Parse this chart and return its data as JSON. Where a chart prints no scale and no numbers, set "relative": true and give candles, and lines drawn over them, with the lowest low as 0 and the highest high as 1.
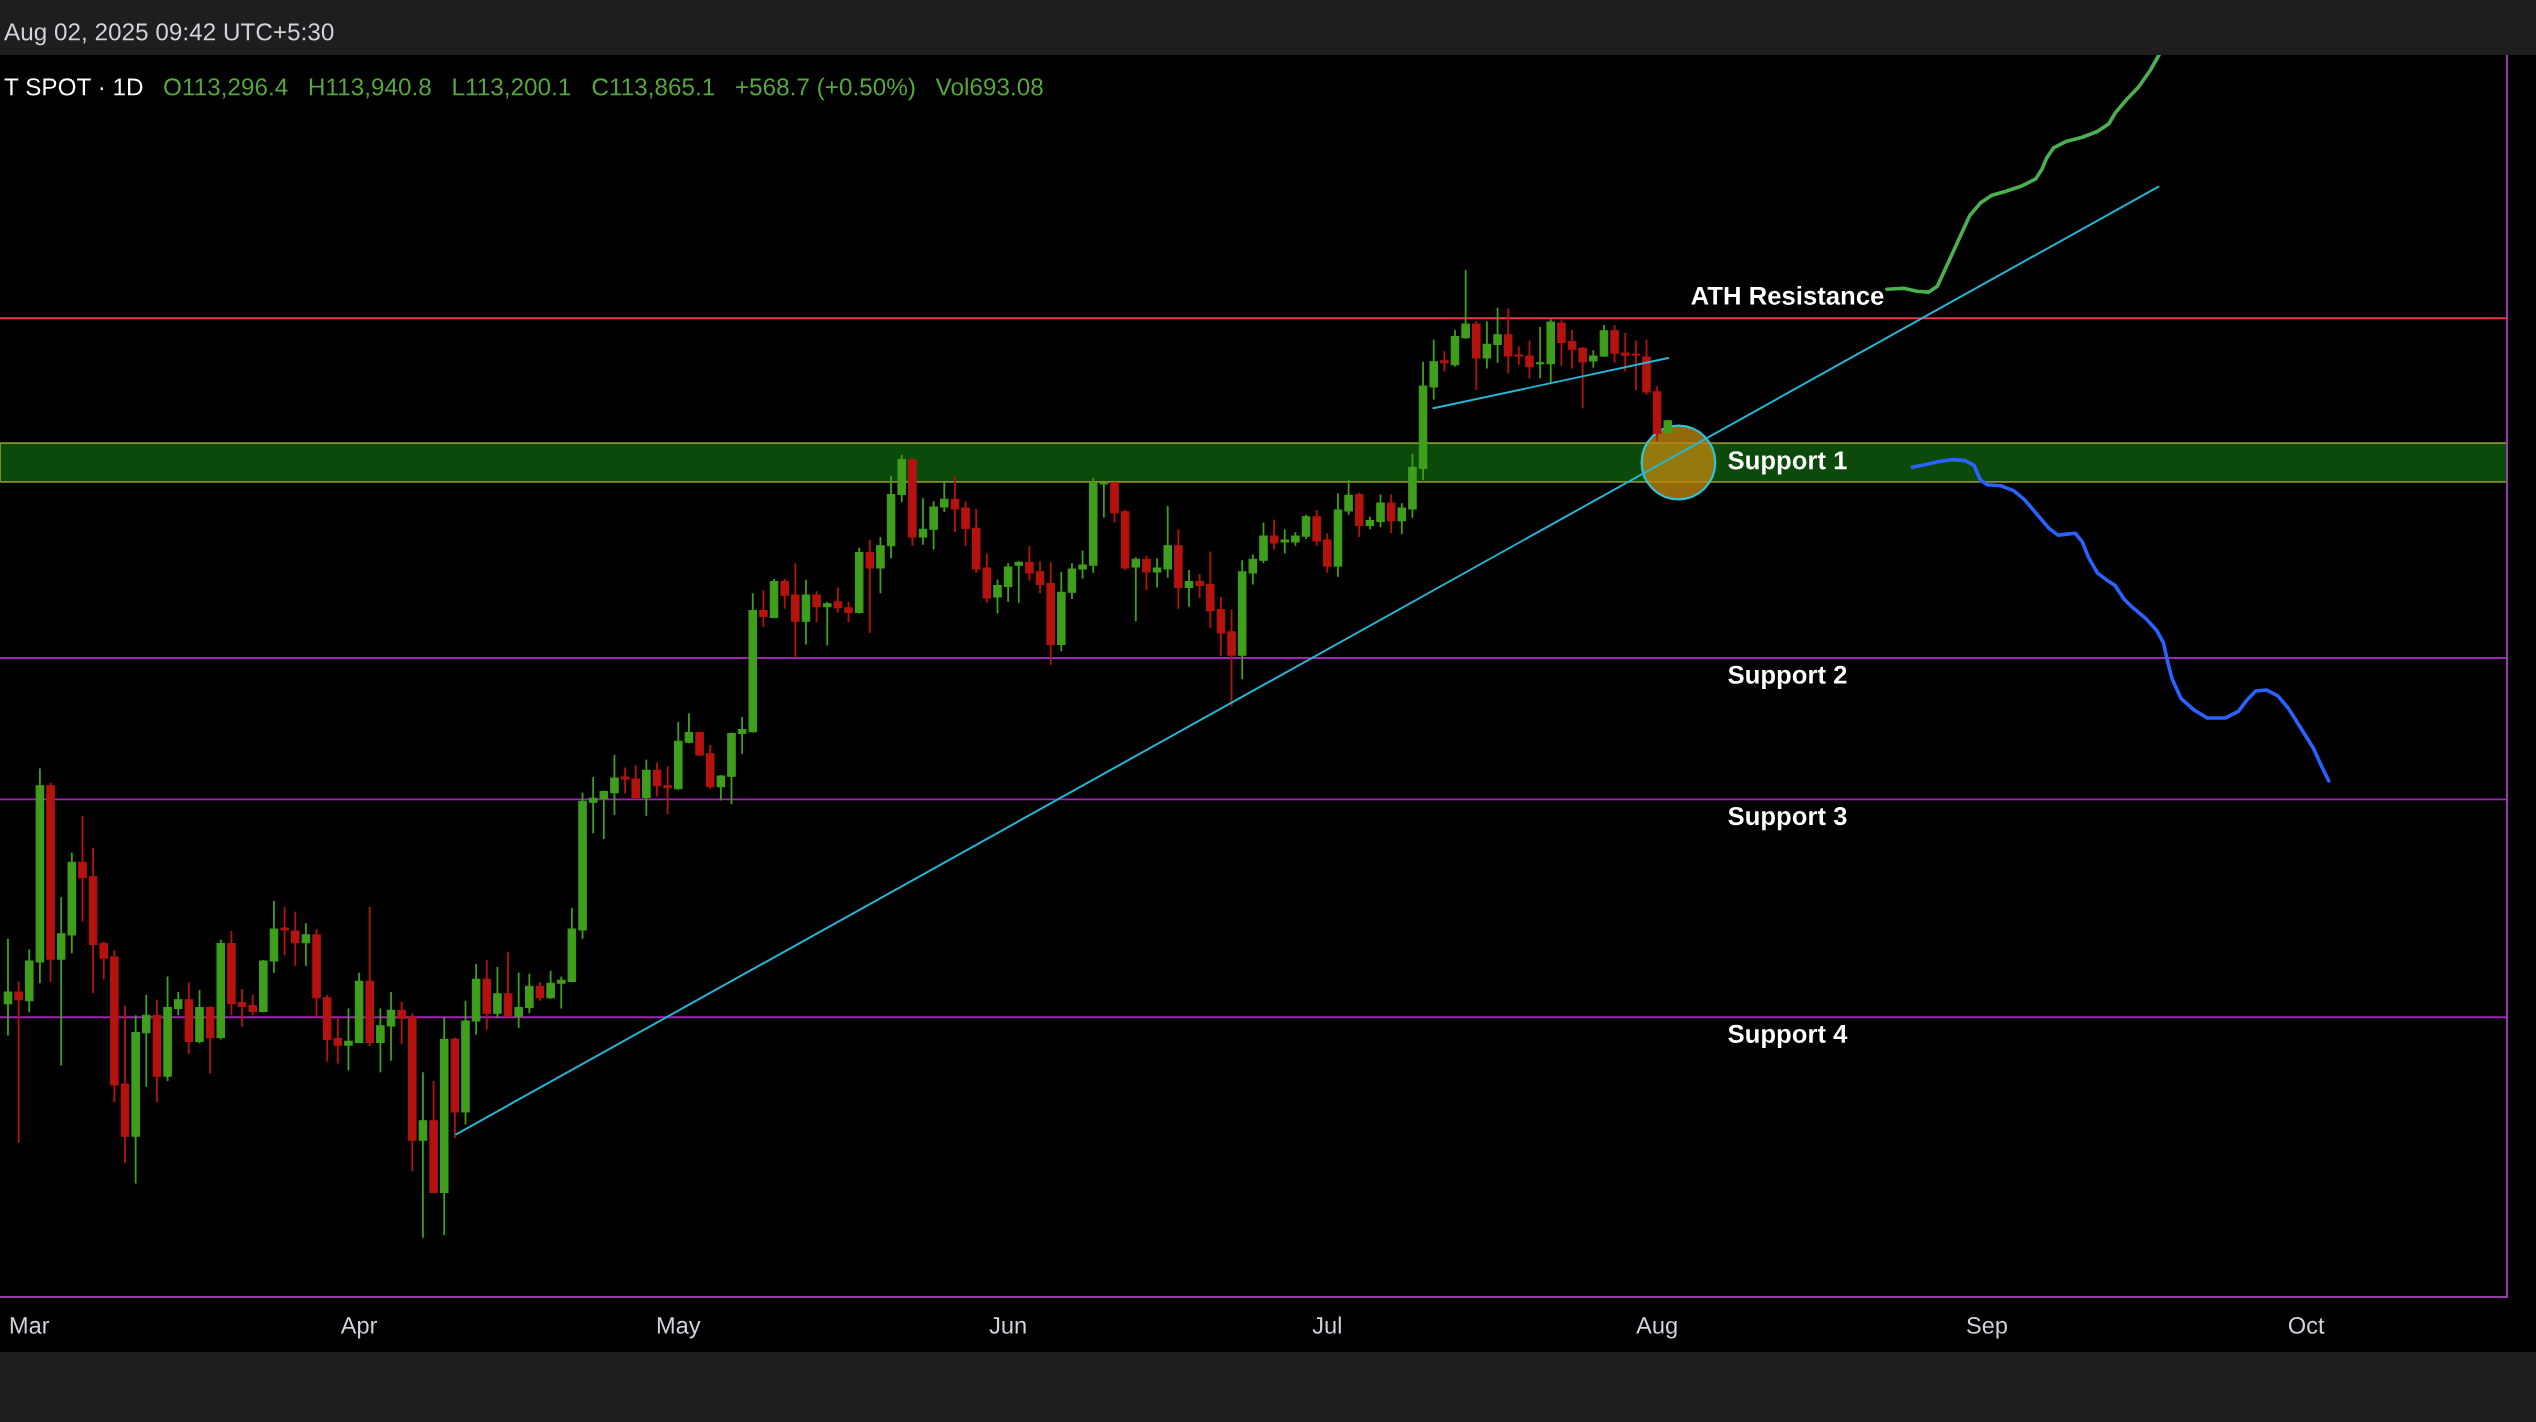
{
  "chart_data": {
    "type": "candlestick",
    "relative": true,
    "annotations": [
      "Aug 02, 2025 09:42 UTC+5:30",
      "T SPOT · 1D",
      "O113,296.4",
      "H113,940.8",
      "L113,200.1",
      "C113,865.1",
      "+568.7 (+0.50%)",
      "Vol693.08"
    ],
    "xlim": [
      "2025-02-26T06:00",
      "2025-10-19T21:00"
    ],
    "xticks": [
      {
        "value": "2025-03-01",
        "label": "Mar"
      },
      {
        "value": "2025-04-01",
        "label": "Apr"
      },
      {
        "value": "2025-05-01",
        "label": "May"
      },
      {
        "value": "2025-06-01",
        "label": "Jun"
      },
      {
        "value": "2025-07-01",
        "label": "Jul"
      },
      {
        "value": "2025-08-01",
        "label": "Aug"
      },
      {
        "value": "2025-09-01",
        "label": "Sep"
      },
      {
        "value": "2025-10-01",
        "label": "Oct"
      }
    ],
    "x": [
      "2025-02-27",
      "2025-02-28",
      "2025-03-01",
      "2025-03-02",
      "2025-03-03",
      "2025-03-04",
      "2025-03-05",
      "2025-03-06",
      "2025-03-07",
      "2025-03-08",
      "2025-03-09",
      "2025-03-10",
      "2025-03-11",
      "2025-03-12",
      "2025-03-13",
      "2025-03-14",
      "2025-03-15",
      "2025-03-16",
      "2025-03-17",
      "2025-03-18",
      "2025-03-19",
      "2025-03-20",
      "2025-03-21",
      "2025-03-22",
      "2025-03-23",
      "2025-03-24",
      "2025-03-25",
      "2025-03-26",
      "2025-03-27",
      "2025-03-28",
      "2025-03-29",
      "2025-03-30",
      "2025-03-31",
      "2025-04-01",
      "2025-04-02",
      "2025-04-03",
      "2025-04-04",
      "2025-04-05",
      "2025-04-06",
      "2025-04-07",
      "2025-04-08",
      "2025-04-09",
      "2025-04-10",
      "2025-04-11",
      "2025-04-12",
      "2025-04-13",
      "2025-04-14",
      "2025-04-15",
      "2025-04-16",
      "2025-04-17",
      "2025-04-18",
      "2025-04-19",
      "2025-04-20",
      "2025-04-21",
      "2025-04-22",
      "2025-04-23",
      "2025-04-24",
      "2025-04-25",
      "2025-04-26",
      "2025-04-27",
      "2025-04-28",
      "2025-04-29",
      "2025-04-30",
      "2025-05-01",
      "2025-05-02",
      "2025-05-03",
      "2025-05-04",
      "2025-05-05",
      "2025-05-06",
      "2025-05-07",
      "2025-05-08",
      "2025-05-09",
      "2025-05-10",
      "2025-05-11",
      "2025-05-12",
      "2025-05-13",
      "2025-05-14",
      "2025-05-15",
      "2025-05-16",
      "2025-05-17",
      "2025-05-18",
      "2025-05-19",
      "2025-05-20",
      "2025-05-21",
      "2025-05-22",
      "2025-05-23",
      "2025-05-24",
      "2025-05-25",
      "2025-05-26",
      "2025-05-27",
      "2025-05-28",
      "2025-05-29",
      "2025-05-30",
      "2025-05-31",
      "2025-06-01",
      "2025-06-02",
      "2025-06-03",
      "2025-06-04",
      "2025-06-05",
      "2025-06-06",
      "2025-06-07",
      "2025-06-08",
      "2025-06-09",
      "2025-06-10",
      "2025-06-11",
      "2025-06-12",
      "2025-06-13",
      "2025-06-14",
      "2025-06-15",
      "2025-06-16",
      "2025-06-17",
      "2025-06-18",
      "2025-06-19",
      "2025-06-20",
      "2025-06-21",
      "2025-06-22",
      "2025-06-23",
      "2025-06-24",
      "2025-06-25",
      "2025-06-26",
      "2025-06-27",
      "2025-06-28",
      "2025-06-29",
      "2025-06-30",
      "2025-07-01",
      "2025-07-02",
      "2025-07-03",
      "2025-07-04",
      "2025-07-05",
      "2025-07-06",
      "2025-07-07",
      "2025-07-08",
      "2025-07-09",
      "2025-07-10",
      "2025-07-11",
      "2025-07-12",
      "2025-07-13",
      "2025-07-14",
      "2025-07-15",
      "2025-07-16",
      "2025-07-17",
      "2025-07-18",
      "2025-07-19",
      "2025-07-20",
      "2025-07-21",
      "2025-07-22",
      "2025-07-23",
      "2025-07-24",
      "2025-07-25",
      "2025-07-26",
      "2025-07-27",
      "2025-07-28",
      "2025-07-29",
      "2025-07-30",
      "2025-07-31",
      "2025-08-01",
      "2025-08-02"
    ],
    "ohlc": [
      [
        0.242,
        0.309,
        0.209,
        0.254
      ],
      [
        0.254,
        0.265,
        0.098,
        0.246
      ],
      [
        0.245,
        0.298,
        0.233,
        0.286
      ],
      [
        0.285,
        0.485,
        0.263,
        0.467
      ],
      [
        0.467,
        0.47,
        0.264,
        0.288
      ],
      [
        0.288,
        0.352,
        0.178,
        0.314
      ],
      [
        0.313,
        0.398,
        0.294,
        0.388
      ],
      [
        0.388,
        0.436,
        0.327,
        0.372
      ],
      [
        0.373,
        0.403,
        0.253,
        0.303
      ],
      [
        0.304,
        0.306,
        0.267,
        0.289
      ],
      [
        0.29,
        0.297,
        0.14,
        0.158
      ],
      [
        0.159,
        0.24,
        0.077,
        0.105
      ],
      [
        0.105,
        0.23,
        0.056,
        0.212
      ],
      [
        0.212,
        0.251,
        0.156,
        0.23
      ],
      [
        0.23,
        0.246,
        0.14,
        0.167
      ],
      [
        0.167,
        0.27,
        0.162,
        0.238
      ],
      [
        0.237,
        0.254,
        0.23,
        0.246
      ],
      [
        0.246,
        0.264,
        0.19,
        0.203
      ],
      [
        0.203,
        0.256,
        0.201,
        0.238
      ],
      [
        0.238,
        0.239,
        0.17,
        0.207
      ],
      [
        0.207,
        0.308,
        0.205,
        0.304
      ],
      [
        0.304,
        0.317,
        0.23,
        0.242
      ],
      [
        0.243,
        0.257,
        0.218,
        0.239
      ],
      [
        0.24,
        0.251,
        0.23,
        0.234
      ],
      [
        0.234,
        0.287,
        0.233,
        0.286
      ],
      [
        0.286,
        0.348,
        0.274,
        0.319
      ],
      [
        0.32,
        0.342,
        0.292,
        0.318
      ],
      [
        0.317,
        0.337,
        0.281,
        0.305
      ],
      [
        0.305,
        0.325,
        0.281,
        0.313
      ],
      [
        0.313,
        0.319,
        0.228,
        0.248
      ],
      [
        0.248,
        0.251,
        0.182,
        0.205
      ],
      [
        0.206,
        0.228,
        0.18,
        0.199
      ],
      [
        0.199,
        0.237,
        0.173,
        0.203
      ],
      [
        0.202,
        0.274,
        0.201,
        0.265
      ],
      [
        0.265,
        0.342,
        0.198,
        0.202
      ],
      [
        0.202,
        0.237,
        0.171,
        0.219
      ],
      [
        0.219,
        0.254,
        0.183,
        0.235
      ],
      [
        0.235,
        0.244,
        0.2,
        0.227
      ],
      [
        0.228,
        0.232,
        0.069,
        0.101
      ],
      [
        0.101,
        0.171,
        0,
        0.121
      ],
      [
        0.121,
        0.162,
        0.046,
        0.047
      ],
      [
        0.047,
        0.228,
        0.003,
        0.205
      ],
      [
        0.205,
        0.207,
        0.103,
        0.13
      ],
      [
        0.13,
        0.245,
        0.117,
        0.224
      ],
      [
        0.224,
        0.283,
        0.21,
        0.267
      ],
      [
        0.267,
        0.287,
        0.215,
        0.232
      ],
      [
        0.232,
        0.28,
        0.227,
        0.252
      ],
      [
        0.252,
        0.295,
        0.228,
        0.229
      ],
      [
        0.229,
        0.274,
        0.217,
        0.238
      ],
      [
        0.238,
        0.273,
        0.232,
        0.26
      ],
      [
        0.26,
        0.264,
        0.245,
        0.248
      ],
      [
        0.248,
        0.276,
        0.247,
        0.263
      ],
      [
        0.263,
        0.27,
        0.237,
        0.266
      ],
      [
        0.265,
        0.341,
        0.264,
        0.319
      ],
      [
        0.318,
        0.46,
        0.309,
        0.451
      ],
      [
        0.45,
        0.476,
        0.418,
        0.454
      ],
      [
        0.454,
        0.462,
        0.412,
        0.461
      ],
      [
        0.46,
        0.499,
        0.437,
        0.475
      ],
      [
        0.476,
        0.486,
        0.459,
        0.474
      ],
      [
        0.474,
        0.488,
        0.454,
        0.455
      ],
      [
        0.455,
        0.494,
        0.436,
        0.483
      ],
      [
        0.483,
        0.491,
        0.456,
        0.467
      ],
      [
        0.467,
        0.487,
        0.438,
        0.465
      ],
      [
        0.464,
        0.533,
        0.463,
        0.513
      ],
      [
        0.512,
        0.542,
        0.511,
        0.522
      ],
      [
        0.522,
        0.523,
        0.498,
        0.499
      ],
      [
        0.5,
        0.509,
        0.464,
        0.466
      ],
      [
        0.466,
        0.478,
        0.452,
        0.477
      ],
      [
        0.477,
        0.522,
        0.448,
        0.521
      ],
      [
        0.521,
        0.538,
        0.5,
        0.525
      ],
      [
        0.523,
        0.666,
        0.522,
        0.648
      ],
      [
        0.648,
        0.669,
        0.631,
        0.642
      ],
      [
        0.641,
        0.681,
        0.64,
        0.678
      ],
      [
        0.678,
        0.681,
        0.65,
        0.664
      ],
      [
        0.664,
        0.697,
        0.599,
        0.637
      ],
      [
        0.637,
        0.68,
        0.613,
        0.664
      ],
      [
        0.664,
        0.668,
        0.636,
        0.652
      ],
      [
        0.652,
        0.657,
        0.612,
        0.655
      ],
      [
        0.657,
        0.672,
        0.646,
        0.651
      ],
      [
        0.651,
        0.657,
        0.636,
        0.646
      ],
      [
        0.646,
        0.713,
        0.645,
        0.708
      ],
      [
        0.708,
        0.721,
        0.625,
        0.692
      ],
      [
        0.692,
        0.724,
        0.666,
        0.715
      ],
      [
        0.715,
        0.787,
        0.702,
        0.768
      ],
      [
        0.768,
        0.809,
        0.76,
        0.804
      ],
      [
        0.804,
        0.805,
        0.715,
        0.724
      ],
      [
        0.724,
        0.764,
        0.716,
        0.732
      ],
      [
        0.732,
        0.761,
        0.711,
        0.755
      ],
      [
        0.755,
        0.781,
        0.75,
        0.763
      ],
      [
        0.763,
        0.787,
        0.729,
        0.753
      ],
      [
        0.754,
        0.761,
        0.715,
        0.733
      ],
      [
        0.733,
        0.753,
        0.687,
        0.691
      ],
      [
        0.692,
        0.707,
        0.656,
        0.661
      ],
      [
        0.662,
        0.68,
        0.645,
        0.674
      ],
      [
        0.673,
        0.697,
        0.657,
        0.693
      ],
      [
        0.695,
        0.699,
        0.656,
        0.698
      ],
      [
        0.698,
        0.715,
        0.679,
        0.687
      ],
      [
        0.688,
        0.699,
        0.666,
        0.675
      ],
      [
        0.676,
        0.698,
        0.592,
        0.613
      ],
      [
        0.613,
        0.688,
        0.606,
        0.667
      ],
      [
        0.667,
        0.697,
        0.66,
        0.691
      ],
      [
        0.691,
        0.71,
        0.681,
        0.695
      ],
      [
        0.695,
        0.785,
        0.687,
        0.78
      ],
      [
        0.779,
        0.781,
        0.744,
        0.78
      ],
      [
        0.78,
        0.781,
        0.739,
        0.749
      ],
      [
        0.75,
        0.752,
        0.69,
        0.692
      ],
      [
        0.693,
        0.703,
        0.637,
        0.701
      ],
      [
        0.701,
        0.705,
        0.669,
        0.688
      ],
      [
        0.688,
        0.702,
        0.672,
        0.692
      ],
      [
        0.691,
        0.756,
        0.682,
        0.715
      ],
      [
        0.715,
        0.732,
        0.65,
        0.672
      ],
      [
        0.672,
        0.69,
        0.652,
        0.678
      ],
      [
        0.678,
        0.686,
        0.661,
        0.674
      ],
      [
        0.675,
        0.709,
        0.63,
        0.648
      ],
      [
        0.649,
        0.662,
        0.601,
        0.625
      ],
      [
        0.626,
        0.649,
        0.549,
        0.602
      ],
      [
        0.602,
        0.7,
        0.577,
        0.688
      ],
      [
        0.687,
        0.706,
        0.675,
        0.701
      ],
      [
        0.7,
        0.739,
        0.697,
        0.725
      ],
      [
        0.725,
        0.742,
        0.711,
        0.718
      ],
      [
        0.719,
        0.732,
        0.707,
        0.721
      ],
      [
        0.719,
        0.729,
        0.715,
        0.725
      ],
      [
        0.725,
        0.747,
        0.722,
        0.745
      ],
      [
        0.745,
        0.752,
        0.715,
        0.72
      ],
      [
        0.721,
        0.728,
        0.687,
        0.694
      ],
      [
        0.694,
        0.769,
        0.683,
        0.752
      ],
      [
        0.751,
        0.783,
        0.747,
        0.767
      ],
      [
        0.768,
        0.77,
        0.724,
        0.736
      ],
      [
        0.736,
        0.745,
        0.732,
        0.741
      ],
      [
        0.74,
        0.768,
        0.734,
        0.759
      ],
      [
        0.759,
        0.768,
        0.728,
        0.741
      ],
      [
        0.741,
        0.759,
        0.727,
        0.754
      ],
      [
        0.753,
        0.81,
        0.744,
        0.796
      ],
      [
        0.795,
        0.905,
        0.783,
        0.88
      ],
      [
        0.879,
        0.928,
        0.866,
        0.905
      ],
      [
        0.906,
        0.916,
        0.895,
        0.904
      ],
      [
        0.902,
        0.938,
        0.9,
        0.931
      ],
      [
        0.93,
        1,
        0.929,
        0.944
      ],
      [
        0.944,
        0.947,
        0.876,
        0.909
      ],
      [
        0.909,
        0.947,
        0.898,
        0.923
      ],
      [
        0.923,
        0.961,
        0.904,
        0.933
      ],
      [
        0.933,
        0.96,
        0.893,
        0.911
      ],
      [
        0.912,
        0.921,
        0.902,
        0.911
      ],
      [
        0.911,
        0.927,
        0.888,
        0.9
      ],
      [
        0.903,
        0.941,
        0.888,
        0.904
      ],
      [
        0.903,
        0.949,
        0.882,
        0.946
      ],
      [
        0.945,
        0.948,
        0.901,
        0.925
      ],
      [
        0.926,
        0.938,
        0.898,
        0.918
      ],
      [
        0.919,
        0.92,
        0.857,
        0.905
      ],
      [
        0.906,
        0.917,
        0.899,
        0.911
      ],
      [
        0.911,
        0.943,
        0.91,
        0.937
      ],
      [
        0.937,
        0.943,
        0.904,
        0.914
      ],
      [
        0.914,
        0.935,
        0.895,
        0.912
      ],
      [
        0.913,
        0.927,
        0.876,
        0.912
      ],
      [
        0.91,
        0.928,
        0.871,
        0.874
      ],
      [
        0.874,
        0.88,
        0.823,
        0.831
      ],
      [
        0.832,
        0.845,
        0.83,
        0.844
      ]
    ],
    "colors": [
      "#3f9f1d",
      "#b5130f",
      "#3f9f1d",
      "#3f9f1d",
      "#b5130f",
      "#3f9f1d",
      "#3f9f1d",
      "#b5130f",
      "#b5130f",
      "#b5130f",
      "#b5130f",
      "#b5130f",
      "#3f9f1d",
      "#3f9f1d",
      "#b5130f",
      "#3f9f1d",
      "#3f9f1d",
      "#b5130f",
      "#3f9f1d",
      "#b5130f",
      "#3f9f1d",
      "#b5130f",
      "#b5130f",
      "#b5130f",
      "#3f9f1d",
      "#3f9f1d",
      "#b5130f",
      "#b5130f",
      "#3f9f1d",
      "#b5130f",
      "#b5130f",
      "#b5130f",
      "#3f9f1d",
      "#3f9f1d",
      "#b5130f",
      "#3f9f1d",
      "#3f9f1d",
      "#b5130f",
      "#b5130f",
      "#3f9f1d",
      "#b5130f",
      "#3f9f1d",
      "#b5130f",
      "#3f9f1d",
      "#3f9f1d",
      "#b5130f",
      "#3f9f1d",
      "#b5130f",
      "#3f9f1d",
      "#3f9f1d",
      "#b5130f",
      "#3f9f1d",
      "#3f9f1d",
      "#3f9f1d",
      "#3f9f1d",
      "#3f9f1d",
      "#3f9f1d",
      "#3f9f1d",
      "#b5130f",
      "#b5130f",
      "#3f9f1d",
      "#b5130f",
      "#b5130f",
      "#3f9f1d",
      "#3f9f1d",
      "#b5130f",
      "#b5130f",
      "#3f9f1d",
      "#3f9f1d",
      "#3f9f1d",
      "#3f9f1d",
      "#b5130f",
      "#3f9f1d",
      "#b5130f",
      "#b5130f",
      "#3f9f1d",
      "#b5130f",
      "#3f9f1d",
      "#b5130f",
      "#b5130f",
      "#3f9f1d",
      "#b5130f",
      "#3f9f1d",
      "#3f9f1d",
      "#3f9f1d",
      "#b5130f",
      "#3f9f1d",
      "#3f9f1d",
      "#3f9f1d",
      "#b5130f",
      "#b5130f",
      "#b5130f",
      "#b5130f",
      "#3f9f1d",
      "#3f9f1d",
      "#3f9f1d",
      "#b5130f",
      "#b5130f",
      "#b5130f",
      "#3f9f1d",
      "#3f9f1d",
      "#3f9f1d",
      "#3f9f1d",
      "#3f9f1d",
      "#b5130f",
      "#b5130f",
      "#3f9f1d",
      "#b5130f",
      "#3f9f1d",
      "#3f9f1d",
      "#b5130f",
      "#3f9f1d",
      "#b5130f",
      "#b5130f",
      "#b5130f",
      "#b5130f",
      "#3f9f1d",
      "#3f9f1d",
      "#3f9f1d",
      "#b5130f",
      "#3f9f1d",
      "#3f9f1d",
      "#3f9f1d",
      "#b5130f",
      "#b5130f",
      "#3f9f1d",
      "#3f9f1d",
      "#b5130f",
      "#3f9f1d",
      "#3f9f1d",
      "#b5130f",
      "#3f9f1d",
      "#3f9f1d",
      "#3f9f1d",
      "#3f9f1d",
      "#b5130f",
      "#3f9f1d",
      "#3f9f1d",
      "#b5130f",
      "#3f9f1d",
      "#3f9f1d",
      "#b5130f",
      "#b5130f",
      "#b5130f",
      "#3f9f1d",
      "#3f9f1d",
      "#b5130f",
      "#b5130f",
      "#b5130f",
      "#3f9f1d",
      "#3f9f1d",
      "#b5130f",
      "#b5130f",
      "#b5130f",
      "#b5130f",
      "#b5130f",
      "#3f9f1d"
    ],
    "series": [
      {
        "type": "line",
        "color": "#22b8d6",
        "x": [
          "2025-04-10T03:00",
          "2025-09-17T03:00"
        ],
        "values": [
          0.107,
          1.086
        ]
      },
      {
        "type": "line",
        "color": "#22b8d6",
        "x": [
          "2025-07-10T23:00",
          "2025-08-02T01:00"
        ],
        "values": [
          0.857,
          0.909
        ]
      },
      {
        "type": "line",
        "color": "#4caf50",
        "x": [
          "2025-08-22T14:00",
          "2025-08-24T04:00",
          "2025-08-25T10:00",
          "2025-08-26T12:00",
          "2025-08-27T08:00",
          "2025-08-27T22:00",
          "2025-08-28T18:00",
          "2025-08-29T13:00",
          "2025-08-30T09:00",
          "2025-08-31T09:00",
          "2025-09-01T11:00",
          "2025-09-02T17:00",
          "2025-09-04T08:00",
          "2025-09-05T14:00",
          "2025-09-06T04:00",
          "2025-09-06T14:00",
          "2025-09-07T06:00",
          "2025-09-08T12:00",
          "2025-09-09T23:00",
          "2025-09-11T09:00",
          "2025-09-12T11:00",
          "2025-09-13T01:00",
          "2025-09-14T03:00",
          "2025-09-15T06:00",
          "2025-09-16T08:00",
          "2025-09-17T04:00"
        ],
        "values": [
          0.98,
          0.981,
          0.978,
          0.977,
          0.983,
          0.997,
          1.017,
          1.036,
          1.056,
          1.069,
          1.077,
          1.081,
          1.087,
          1.094,
          1.104,
          1.115,
          1.126,
          1.133,
          1.137,
          1.143,
          1.151,
          1.162,
          1.176,
          1.189,
          1.206,
          1.222
        ]
      },
      {
        "type": "line",
        "color": "#2962ff",
        "x": [
          "2025-08-25T00:00",
          "2025-08-26T06:00",
          "2025-08-27T12:00",
          "2025-08-28T18:00",
          "2025-08-29T23:00",
          "2025-08-30T19:00",
          "2025-08-31T09:00",
          "2025-09-01T01:00",
          "2025-09-02T07:00",
          "2025-09-03T12:00",
          "2025-09-04T12:00",
          "2025-09-05T14:00",
          "2025-09-06T20:00",
          "2025-09-07T16:00",
          "2025-09-08T12:00",
          "2025-09-09T07:00",
          "2025-09-09T23:00",
          "2025-09-10T13:00",
          "2025-09-11T09:00",
          "2025-09-12T05:00",
          "2025-09-13T01:00",
          "2025-09-13T21:00",
          "2025-09-14T17:00",
          "2025-09-15T22:00",
          "2025-09-16T22:00",
          "2025-09-17T14:00",
          "2025-09-18T00:00",
          "2025-09-18T10:00",
          "2025-09-19T06:00",
          "2025-09-20T12:00",
          "2025-09-21T17:00",
          "2025-09-23T09:00",
          "2025-09-24T15:00",
          "2025-09-25T11:00",
          "2025-09-26T06:00",
          "2025-09-27T06:00",
          "2025-09-28T08:00",
          "2025-09-29T08:00",
          "2025-09-30T10:00",
          "2025-10-01T16:00",
          "2025-10-02T11:00",
          "2025-10-03T03:00"
        ],
        "values": [
          0.796,
          0.799,
          0.802,
          0.804,
          0.803,
          0.798,
          0.783,
          0.778,
          0.777,
          0.772,
          0.763,
          0.749,
          0.733,
          0.726,
          0.727,
          0.728,
          0.719,
          0.703,
          0.687,
          0.68,
          0.674,
          0.66,
          0.651,
          0.64,
          0.628,
          0.615,
          0.594,
          0.577,
          0.557,
          0.545,
          0.537,
          0.537,
          0.544,
          0.556,
          0.565,
          0.566,
          0.56,
          0.547,
          0.528,
          0.506,
          0.487,
          0.472
        ]
      }
    ],
    "ref_lines": [
      {
        "axis": "y",
        "value": 0.95,
        "label": "ATH Resistance",
        "color": "#f23645"
      },
      {
        "axis": "y",
        "value": 0.599,
        "label": "Support 2",
        "color": "#9c27b0"
      },
      {
        "axis": "y",
        "value": 0.453,
        "label": "Support 3",
        "color": "#9c27b0"
      },
      {
        "axis": "y",
        "value": 0.228,
        "label": "Support 4",
        "color": "#9c27b0"
      }
    ],
    "bands": [
      {
        "axis": "y",
        "from": 0.781,
        "to": 0.821,
        "label": "Support 1",
        "color": "#0b4a0b"
      }
    ]
  }
}
